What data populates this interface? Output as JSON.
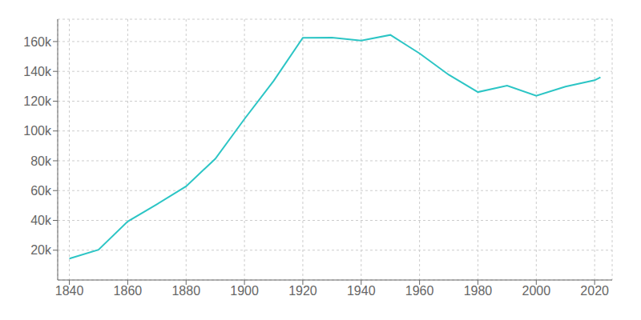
{
  "chart_data": {
    "type": "line",
    "x": [
      1840,
      1850,
      1860,
      1870,
      1880,
      1890,
      1900,
      1910,
      1920,
      1930,
      1940,
      1950,
      1960,
      1970,
      1980,
      1990,
      2000,
      2010,
      2020,
      2022
    ],
    "values": [
      14390,
      20345,
      39267,
      50840,
      62882,
      81298,
      108027,
      133605,
      162537,
      162655,
      160605,
      164443,
      152048,
      137707,
      126109,
      130474,
      123626,
      129779,
      134023,
      136050
    ],
    "color": "#2cc5c5",
    "xlim": [
      1836,
      2026
    ],
    "ylim": [
      0,
      175000
    ],
    "xticks": [
      1840,
      1860,
      1880,
      1900,
      1920,
      1940,
      1960,
      1980,
      2000,
      2020
    ],
    "yticks": [
      {
        "value": 20000,
        "label": "20k"
      },
      {
        "value": 40000,
        "label": "40k"
      },
      {
        "value": 60000,
        "label": "60k"
      },
      {
        "value": 80000,
        "label": "80k"
      },
      {
        "value": 100000,
        "label": "100k"
      },
      {
        "value": 120000,
        "label": "120k"
      },
      {
        "value": 140000,
        "label": "140k"
      },
      {
        "value": 160000,
        "label": "160k"
      }
    ],
    "grid": true
  }
}
